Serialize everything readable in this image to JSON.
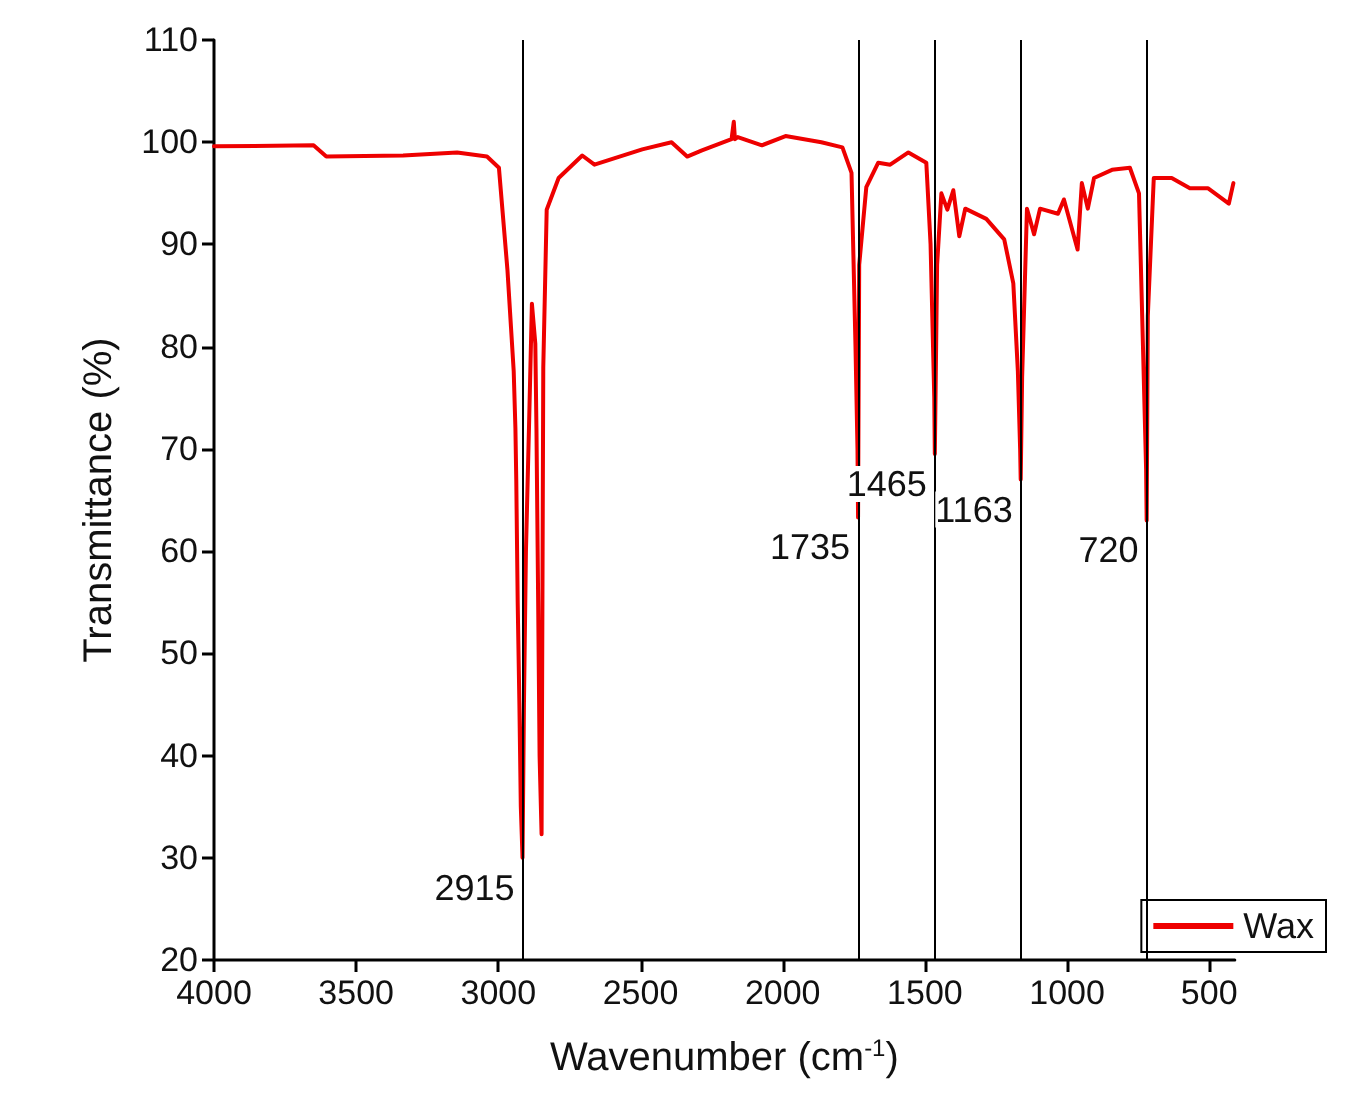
{
  "chart_data": {
    "type": "line",
    "xlabel": "Wavenumber (cm$^{-1}$)",
    "ylabel": "Transmittance (%)",
    "xlim": [
      4000,
      410
    ],
    "xticks": [
      4000,
      3500,
      3000,
      2500,
      2000,
      1500,
      1000,
      500
    ],
    "ylim": [
      20,
      110
    ],
    "yticks": [
      20,
      30,
      40,
      50,
      60,
      70,
      80,
      90,
      100,
      110
    ],
    "grid": false,
    "legend": "bottom right",
    "marker": "none",
    "line_style": "solid",
    "ref_lines": [
      {
        "axis": "x",
        "value": 2915,
        "label": "2915",
        "color": "#000000"
      },
      {
        "axis": "x",
        "value": 1735,
        "label": "1735",
        "color": "#000000"
      },
      {
        "axis": "x",
        "value": 1465,
        "label": "1465",
        "color": "#000000"
      },
      {
        "axis": "x",
        "value": 1163,
        "label": "1163",
        "color": "#000000"
      },
      {
        "axis": "x",
        "value": 720,
        "label": "720",
        "color": "#000000"
      }
    ],
    "series": [
      {
        "name": "Wax",
        "color": "#ee0000",
        "x": [
          4000,
          3650,
          3605,
          3335,
          3145,
          3040,
          2998,
          2968,
          2946,
          2940,
          2937,
          2932,
          2926,
          2921,
          2915,
          2910,
          2903,
          2892,
          2882,
          2870,
          2866,
          2860,
          2855,
          2848,
          2842,
          2830,
          2788,
          2705,
          2662,
          2494,
          2391,
          2336,
          2284,
          2180,
          2172,
          2168,
          2158,
          2073,
          1990,
          1864,
          1790,
          1758,
          1744,
          1737,
          1735,
          1731,
          1706,
          1664,
          1622,
          1558,
          1495,
          1480,
          1467,
          1465,
          1457,
          1442,
          1421,
          1400,
          1379,
          1358,
          1284,
          1221,
          1189,
          1173,
          1165,
          1163,
          1158,
          1141,
          1116,
          1095,
          1032,
          1011,
          963,
          948,
          927,
          905,
          842,
          779,
          747,
          733,
          722,
          720,
          716,
          695,
          632,
          568,
          505,
          431,
          415
        ],
        "values": [
          99.6,
          99.7,
          98.6,
          98.7,
          99.0,
          98.6,
          97.5,
          87.5,
          77.6,
          72,
          67,
          55,
          45,
          35,
          30,
          45,
          60,
          72.4,
          84.2,
          80.3,
          72,
          55,
          40,
          32.3,
          78,
          93.4,
          96.5,
          98.7,
          97.8,
          99.3,
          100,
          98.6,
          99.2,
          100.3,
          102.0,
          100.3,
          100.5,
          99.7,
          100.6,
          100,
          99.5,
          97,
          80,
          70,
          63.3,
          88,
          95.6,
          98,
          97.8,
          99,
          98,
          90,
          75,
          69.5,
          88,
          95,
          93.4,
          95.3,
          90.8,
          93.5,
          92.5,
          90.5,
          86.2,
          77.6,
          70,
          67,
          77,
          93.5,
          91,
          93.5,
          93,
          94.4,
          89.5,
          96,
          93.5,
          96.5,
          97.3,
          97.5,
          95,
          80,
          68,
          63,
          83,
          96.5,
          96.5,
          95.5,
          95.5,
          94,
          96
        ]
      }
    ]
  }
}
